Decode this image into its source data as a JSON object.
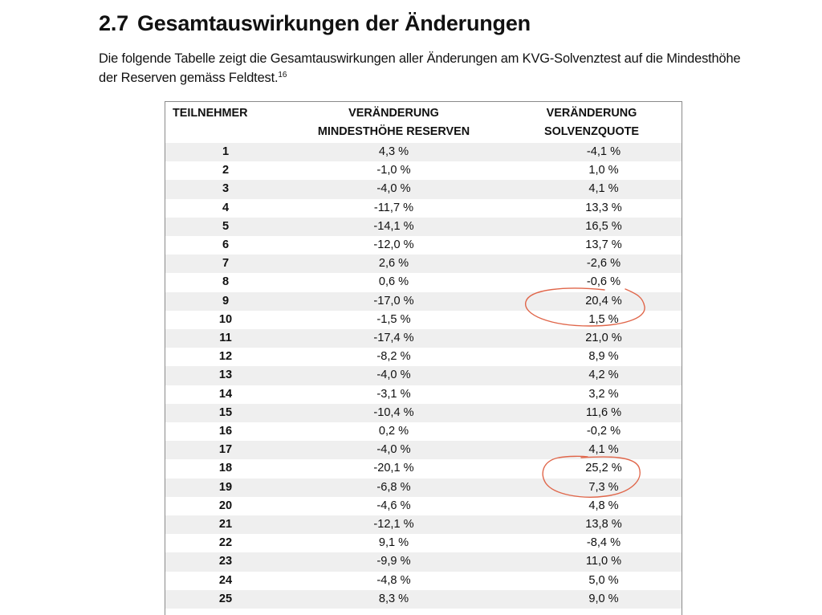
{
  "section": {
    "number": "2.7",
    "title": "Gesamtauswirkungen der Änderungen"
  },
  "intro": {
    "text": "Die folgende Tabelle zeigt die Gesamtauswirkungen aller Änderungen am KVG-Solvenztest auf die Mindesthöhe der Reserven gemäss Feldtest.",
    "footnote": "16"
  },
  "table": {
    "headers": [
      {
        "line1": "TEILNEHMER",
        "line2": ""
      },
      {
        "line1": "VERÄNDERUNG",
        "line2": "MINDESTHÖHE RESERVEN"
      },
      {
        "line1": "VERÄNDERUNG",
        "line2": "SOLVENZQUOTE"
      }
    ],
    "rows": [
      {
        "id": "1",
        "reserven": "4,3 %",
        "solvenzquote": "-4,1 %"
      },
      {
        "id": "2",
        "reserven": "-1,0 %",
        "solvenzquote": "1,0 %"
      },
      {
        "id": "3",
        "reserven": "-4,0 %",
        "solvenzquote": "4,1 %"
      },
      {
        "id": "4",
        "reserven": "-11,7 %",
        "solvenzquote": "13,3 %"
      },
      {
        "id": "5",
        "reserven": "-14,1 %",
        "solvenzquote": "16,5 %"
      },
      {
        "id": "6",
        "reserven": "-12,0 %",
        "solvenzquote": "13,7 %"
      },
      {
        "id": "7",
        "reserven": "2,6 %",
        "solvenzquote": "-2,6 %"
      },
      {
        "id": "8",
        "reserven": "0,6 %",
        "solvenzquote": "-0,6 %"
      },
      {
        "id": "9",
        "reserven": "-17,0 %",
        "solvenzquote": "20,4 %"
      },
      {
        "id": "10",
        "reserven": "-1,5 %",
        "solvenzquote": "1,5 %"
      },
      {
        "id": "11",
        "reserven": "-17,4 %",
        "solvenzquote": "21,0 %"
      },
      {
        "id": "12",
        "reserven": "-8,2 %",
        "solvenzquote": "8,9 %"
      },
      {
        "id": "13",
        "reserven": "-4,0 %",
        "solvenzquote": "4,2 %"
      },
      {
        "id": "14",
        "reserven": "-3,1 %",
        "solvenzquote": "3,2 %"
      },
      {
        "id": "15",
        "reserven": "-10,4 %",
        "solvenzquote": "11,6 %"
      },
      {
        "id": "16",
        "reserven": "0,2 %",
        "solvenzquote": "-0,2 %"
      },
      {
        "id": "17",
        "reserven": "-4,0 %",
        "solvenzquote": "4,1 %"
      },
      {
        "id": "18",
        "reserven": "-20,1 %",
        "solvenzquote": "25,2 %"
      },
      {
        "id": "19",
        "reserven": "-6,8 %",
        "solvenzquote": "7,3 %"
      },
      {
        "id": "20",
        "reserven": "-4,6 %",
        "solvenzquote": "4,8 %"
      },
      {
        "id": "21",
        "reserven": "-12,1 %",
        "solvenzquote": "13,8 %"
      },
      {
        "id": "22",
        "reserven": "9,1 %",
        "solvenzquote": "-8,4 %"
      },
      {
        "id": "23",
        "reserven": "-9,9 %",
        "solvenzquote": "11,0 %"
      },
      {
        "id": "24",
        "reserven": "-4,8 %",
        "solvenzquote": "5,0 %"
      },
      {
        "id": "25",
        "reserven": "8,3 %",
        "solvenzquote": "9,0 %"
      }
    ]
  },
  "annotations": {
    "color": "#e0664a",
    "circled_rows": [
      [
        "9",
        "10"
      ],
      [
        "18",
        "19"
      ]
    ]
  }
}
